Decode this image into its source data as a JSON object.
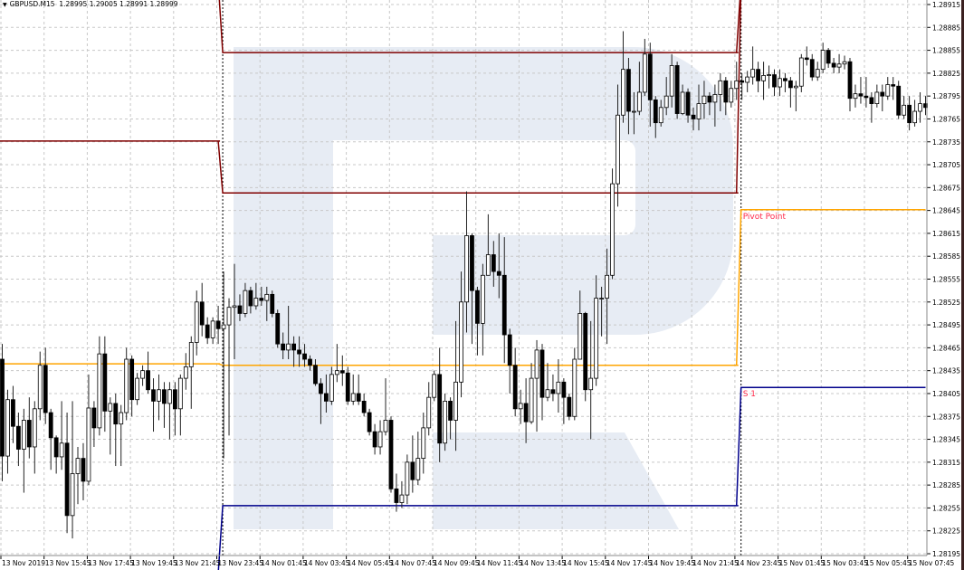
{
  "header": {
    "symbol": "GBPUSD.M15",
    "quote": "1.28995 1.29005 1.28991 1.28999",
    "menu_icon": "triangle-down-icon"
  },
  "colors": {
    "bull_fill": "#ffffff",
    "bear_fill": "#000000",
    "wick": "#000000",
    "grid": "#c8c8c8",
    "resistance": "#800000",
    "pivot": "#ffa500",
    "support": "#00008b",
    "label": "#ff2a4a",
    "watermark": "#e7ecf4"
  },
  "chart_data": {
    "type": "candlestick",
    "title": "",
    "symbol": "GBPUSD.M15",
    "ylim": [
      1.28195,
      1.28915
    ],
    "y_ticks": [
      "1.28915",
      "1.28885",
      "1.28855",
      "1.28825",
      "1.28795",
      "1.28765",
      "1.28735",
      "1.28705",
      "1.28675",
      "1.28645",
      "1.28615",
      "1.28585",
      "1.28555",
      "1.28525",
      "1.28495",
      "1.28465",
      "1.28435",
      "1.28405",
      "1.28375",
      "1.28345",
      "1.28315",
      "1.28285",
      "1.28255",
      "1.28225",
      "1.28195"
    ],
    "x_ticks": [
      "13 Nov 2019",
      "13 Nov 15:45",
      "13 Nov 17:45",
      "13 Nov 19:45",
      "13 Nov 21:45",
      "13 Nov 23:45",
      "14 Nov 01:45",
      "14 Nov 03:45",
      "14 Nov 05:45",
      "14 Nov 07:45",
      "14 Nov 09:45",
      "14 Nov 11:45",
      "14 Nov 13:45",
      "14 Nov 15:45",
      "14 Nov 17:45",
      "14 Nov 19:45",
      "14 Nov 21:45",
      "14 Nov 23:45",
      "15 Nov 01:45",
      "15 Nov 03:45",
      "15 Nov 05:45",
      "15 Nov 07:45"
    ],
    "grid": true,
    "first_open": 1.2845,
    "close": [
      1.28323,
      1.28397,
      1.28362,
      1.28332,
      1.2837,
      1.28335,
      1.28385,
      1.28442,
      1.2838,
      1.28347,
      1.28322,
      1.2834,
      1.28245,
      1.283,
      1.2832,
      1.2829,
      1.28386,
      1.2836,
      1.28457,
      1.28382,
      1.28392,
      1.28365,
      1.2838,
      1.2845,
      1.28397,
      1.28425,
      1.28435,
      1.2841,
      1.28395,
      1.2841,
      1.28392,
      1.2841,
      1.28385,
      1.28425,
      1.2844,
      1.28472,
      1.28525,
      1.28495,
      1.28478,
      1.285,
      1.2849,
      1.28495,
      1.28518,
      1.2852,
      1.2851,
      1.2854,
      1.2852,
      1.2853,
      1.28527,
      1.28535,
      1.2851,
      1.2847,
      1.28462,
      1.2847,
      1.28462,
      1.28457,
      1.2845,
      1.28442,
      1.28418,
      1.28405,
      1.28395,
      1.2843,
      1.28435,
      1.28432,
      1.28395,
      1.28405,
      1.28395,
      1.2838,
      1.28355,
      1.28335,
      1.28355,
      1.2837,
      1.2828,
      1.28262,
      1.28272,
      1.28315,
      1.28292,
      1.2832,
      1.2836,
      1.284,
      1.2843,
      1.2834,
      1.28395,
      1.2837,
      1.2842,
      1.28525,
      1.28612,
      1.2854,
      1.28497,
      1.2856,
      1.28587,
      1.28565,
      1.2856,
      1.28482,
      1.28442,
      1.28385,
      1.28392,
      1.28368,
      1.28425,
      1.28462,
      1.284,
      1.2841,
      1.28405,
      1.2842,
      1.284,
      1.28375,
      1.2845,
      1.2851,
      1.2841,
      1.28425,
      1.2853,
      1.2853,
      1.2856,
      1.2868,
      1.2877,
      1.2883,
      1.28775,
      1.28775,
      1.288,
      1.2885,
      1.2879,
      1.2876,
      1.2878,
      1.28795,
      1.28835,
      1.28772,
      1.288,
      1.2877,
      1.28765,
      1.28785,
      1.28795,
      1.28787,
      1.28797,
      1.28815,
      1.28787,
      1.28805,
      1.28815,
      1.28813,
      1.2882,
      1.2883,
      1.28815,
      1.28822,
      1.28823,
      1.28807,
      1.28818,
      1.28815,
      1.28806,
      1.28808,
      1.28845,
      1.28843,
      1.2882,
      1.2883,
      1.28855,
      1.28838,
      1.28833,
      1.28837,
      1.2884,
      1.28792,
      1.28798,
      1.28795,
      1.28793,
      1.28785,
      1.288,
      1.28795,
      1.2881,
      1.28808,
      1.2877,
      1.28783,
      1.2876,
      1.28775,
      1.28785,
      1.2878
    ],
    "high": [
      1.2847,
      1.2841,
      1.28415,
      1.2838,
      1.28385,
      1.284,
      1.28395,
      1.2846,
      1.28465,
      1.28385,
      1.2835,
      1.28395,
      1.2838,
      1.28395,
      1.28335,
      1.2834,
      1.2843,
      1.28395,
      1.2848,
      1.2848,
      1.284,
      1.28405,
      1.2839,
      1.28465,
      1.28455,
      1.28432,
      1.28442,
      1.2846,
      1.28425,
      1.2843,
      1.2842,
      1.2842,
      1.2842,
      1.2843,
      1.28458,
      1.2848,
      1.2854,
      1.2855,
      1.28505,
      1.28505,
      1.2852,
      1.28565,
      1.2853,
      1.28575,
      1.28535,
      1.2855,
      1.28545,
      1.2855,
      1.28545,
      1.28545,
      1.2854,
      1.28515,
      1.28485,
      1.2852,
      1.2848,
      1.2848,
      1.2847,
      1.28455,
      1.2845,
      1.28425,
      1.2843,
      1.2844,
      1.2847,
      1.28455,
      1.2844,
      1.2843,
      1.2843,
      1.28405,
      1.28385,
      1.28365,
      1.2837,
      1.28425,
      1.28375,
      1.283,
      1.2829,
      1.28325,
      1.2835,
      1.28355,
      1.2838,
      1.2842,
      1.28435,
      1.28465,
      1.28405,
      1.284,
      1.285,
      1.28565,
      1.2867,
      1.28615,
      1.28545,
      1.28575,
      1.2864,
      1.28605,
      1.28615,
      1.2861,
      1.2849,
      1.28465,
      1.2841,
      1.28425,
      1.28445,
      1.28475,
      1.2847,
      1.28445,
      1.2843,
      1.2845,
      1.28425,
      1.28405,
      1.28465,
      1.2854,
      1.28512,
      1.285,
      1.2856,
      1.28545,
      1.28595,
      1.287,
      1.2881,
      1.2888,
      1.28845,
      1.288,
      1.2884,
      1.2887,
      1.28865,
      1.28795,
      1.2879,
      1.2882,
      1.2885,
      1.2884,
      1.2881,
      1.28805,
      1.2878,
      1.2881,
      1.28815,
      1.288,
      1.2881,
      1.28825,
      1.2882,
      1.28815,
      1.2884,
      1.28825,
      1.28828,
      1.2886,
      1.2884,
      1.2884,
      1.28835,
      1.2883,
      1.2883,
      1.28825,
      1.2882,
      1.28815,
      1.2885,
      1.2886,
      1.2885,
      1.2884,
      1.28865,
      1.28858,
      1.28845,
      1.2885,
      1.28848,
      1.28845,
      1.2881,
      1.2882,
      1.2882,
      1.288,
      1.2881,
      1.2881,
      1.2882,
      1.2882,
      1.28815,
      1.28795,
      1.28795,
      1.2879,
      1.288,
      1.28795
    ],
    "low": [
      1.2829,
      1.283,
      1.2834,
      1.2831,
      1.28275,
      1.2832,
      1.283,
      1.2837,
      1.28365,
      1.28305,
      1.283,
      1.28305,
      1.28222,
      1.28215,
      1.2826,
      1.28265,
      1.28285,
      1.28335,
      1.2835,
      1.28355,
      1.28325,
      1.2831,
      1.2831,
      1.2837,
      1.28375,
      1.2839,
      1.28415,
      1.28405,
      1.28355,
      1.2837,
      1.2836,
      1.28345,
      1.2835,
      1.2835,
      1.2841,
      1.28385,
      1.28455,
      1.2848,
      1.2847,
      1.2847,
      1.2847,
      1.2832,
      1.2835,
      1.2845,
      1.285,
      1.28505,
      1.2851,
      1.28515,
      1.2852,
      1.285,
      1.28505,
      1.28465,
      1.2845,
      1.2845,
      1.2844,
      1.2844,
      1.2844,
      1.28435,
      1.28415,
      1.28365,
      1.2838,
      1.2839,
      1.2842,
      1.28415,
      1.2839,
      1.2839,
      1.2839,
      1.28375,
      1.2835,
      1.28325,
      1.28325,
      1.2835,
      1.28275,
      1.2825,
      1.28255,
      1.2826,
      1.28275,
      1.28285,
      1.283,
      1.2835,
      1.28395,
      1.28315,
      1.2833,
      1.28345,
      1.2833,
      1.284,
      1.28485,
      1.2847,
      1.28455,
      1.28455,
      1.2857,
      1.28545,
      1.2853,
      1.28445,
      1.28405,
      1.28375,
      1.28365,
      1.2834,
      1.28365,
      1.28355,
      1.2837,
      1.28395,
      1.28395,
      1.2838,
      1.28365,
      1.2837,
      1.2837,
      1.2845,
      1.28395,
      1.28345,
      1.28415,
      1.2848,
      1.2847,
      1.28555,
      1.2865,
      1.2876,
      1.28745,
      1.28745,
      1.2877,
      1.28795,
      1.28755,
      1.2874,
      1.28755,
      1.2877,
      1.2878,
      1.28765,
      1.2877,
      1.2876,
      1.2875,
      1.2875,
      1.28765,
      1.2877,
      1.28755,
      1.28775,
      1.2877,
      1.2878,
      1.2879,
      1.2879,
      1.288,
      1.2881,
      1.288,
      1.2879,
      1.28805,
      1.28795,
      1.28795,
      1.288,
      1.2878,
      1.28775,
      1.288,
      1.28835,
      1.28815,
      1.28815,
      1.28825,
      1.28832,
      1.28825,
      1.28825,
      1.2883,
      1.28775,
      1.2878,
      1.28785,
      1.2878,
      1.2876,
      1.2878,
      1.28775,
      1.2879,
      1.2879,
      1.28765,
      1.28765,
      1.2875,
      1.28755,
      1.2876,
      1.2877
    ],
    "pivot_days": [
      {
        "day": "13 Nov",
        "start_index": 0,
        "R2": null,
        "R1": 1.28736,
        "P": 1.28444,
        "S1": null
      },
      {
        "day": "14 Nov",
        "start_index": 41,
        "R2": 1.28852,
        "R1": 1.28668,
        "P": 1.28442,
        "S1": 1.28258
      },
      {
        "day": "15 Nov",
        "start_index": 137,
        "R2": null,
        "R1": null,
        "P": 1.28646,
        "S1": 1.28413
      }
    ],
    "annotations": [
      {
        "text": "Pivot Point",
        "level": "P"
      },
      {
        "text": "S 1",
        "level": "S1"
      }
    ]
  }
}
